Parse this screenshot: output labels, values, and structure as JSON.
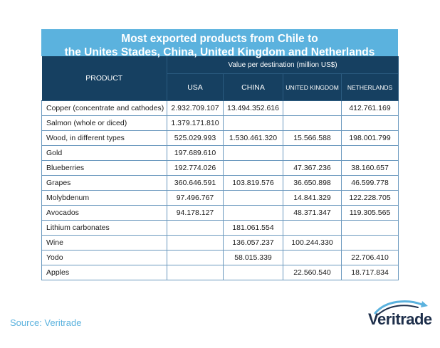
{
  "title_line1": "Most exported products from Chile to",
  "title_line2": "the Unites Stades, China, United Kingdom and Netherlands",
  "header": {
    "product": "PRODUCT",
    "group": "Value per destination (million US$)",
    "destinations": [
      "USA",
      "CHINA",
      "UNITED KINGDOM",
      "NETHERLANDS"
    ]
  },
  "rows": [
    {
      "product": "Copper (concentrate and cathodes)",
      "usa": "2.932.709.107",
      "china": "13.494.352.616",
      "uk": "",
      "nl": "412.761.169"
    },
    {
      "product": "Salmon (whole or diced)",
      "usa": "1.379.171.810",
      "china": "",
      "uk": "",
      "nl": ""
    },
    {
      "product": "Wood, in different types",
      "usa": "525.029.993",
      "china": "1.530.461.320",
      "uk": "15.566.588",
      "nl": "198.001.799"
    },
    {
      "product": "Gold",
      "usa": "197.689.610",
      "china": "",
      "uk": "",
      "nl": ""
    },
    {
      "product": "Blueberries",
      "usa": "192.774.026",
      "china": "",
      "uk": "47.367.236",
      "nl": "38.160.657"
    },
    {
      "product": "Grapes",
      "usa": "360.646.591",
      "china": "103.819.576",
      "uk": "36.650.898",
      "nl": "46.599.778"
    },
    {
      "product": "Molybdenum",
      "usa": "97.496.767",
      "china": "",
      "uk": "14.841.329",
      "nl": "122.228.705"
    },
    {
      "product": "Avocados",
      "usa": "94.178.127",
      "china": "",
      "uk": "48.371.347",
      "nl": "119.305.565"
    },
    {
      "product": "Lithium carbonates",
      "usa": "",
      "china": "181.061.554",
      "uk": "",
      "nl": ""
    },
    {
      "product": "Wine",
      "usa": "",
      "china": "136.057.237",
      "uk": "100.244.330",
      "nl": ""
    },
    {
      "product": "Yodo",
      "usa": "",
      "china": "58.015.339",
      "uk": "",
      "nl": "22.706.410"
    },
    {
      "product": "Apples",
      "usa": "",
      "china": "",
      "uk": "22.560.540",
      "nl": "18.717.834"
    }
  ],
  "source": "Source: Veritrade",
  "logo_text": "Veritrade",
  "colors": {
    "title_band": "#5bb2de",
    "header_band": "#164061",
    "grid": "#6a98be",
    "source_text": "#5bb2de",
    "logo_text": "#1d2e4a"
  }
}
